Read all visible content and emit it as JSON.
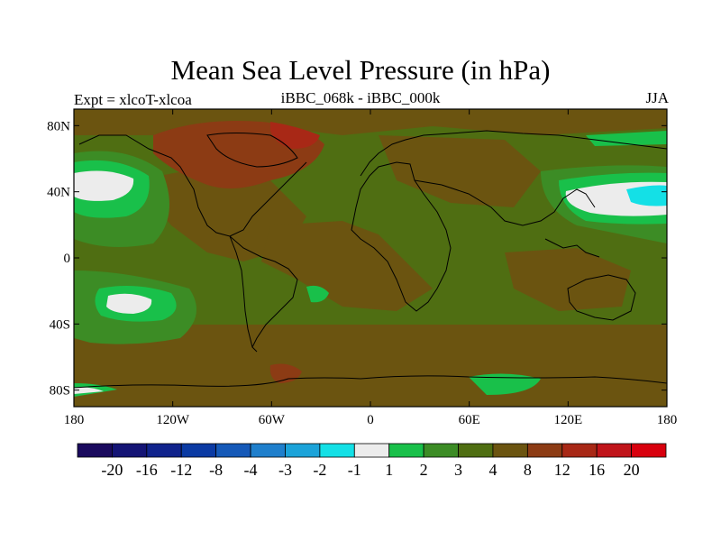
{
  "header": {
    "title": "Mean Sea Level Pressure (in hPa)",
    "left_label": "Expt = xlcoT-xlcoa",
    "center_label": "iBBC_068k - iBBC_000k",
    "right_label": "JJA"
  },
  "axes": {
    "lat_ticks": [
      {
        "value": 80,
        "label": "80N"
      },
      {
        "value": 40,
        "label": "40N"
      },
      {
        "value": 0,
        "label": "0"
      },
      {
        "value": -40,
        "label": "40S"
      },
      {
        "value": -80,
        "label": "80S"
      }
    ],
    "lon_ticks": [
      {
        "value": -180,
        "label": "180"
      },
      {
        "value": -120,
        "label": "120W"
      },
      {
        "value": -60,
        "label": "60W"
      },
      {
        "value": 0,
        "label": "0"
      },
      {
        "value": 60,
        "label": "60E"
      },
      {
        "value": 120,
        "label": "120E"
      },
      {
        "value": 180,
        "label": "180"
      }
    ],
    "lon_range": [
      -180,
      180
    ],
    "lat_range": [
      -90,
      90
    ]
  },
  "colorbar": {
    "colors": [
      "#1a0a5e",
      "#141475",
      "#10238c",
      "#0b3aa3",
      "#1559b8",
      "#1f7fcc",
      "#1ba3d9",
      "#14e0e6",
      "#ececec",
      "#19c04a",
      "#3c8c25",
      "#4f6e12",
      "#6b5410",
      "#8c3b14",
      "#a82816",
      "#c0141a",
      "#d8000e"
    ],
    "labels": [
      "-20",
      "-16",
      "-12",
      "-8",
      "-4",
      "-3",
      "-2",
      "-1",
      "1",
      "2",
      "3",
      "4",
      "8",
      "12",
      "16",
      "20"
    ]
  }
}
